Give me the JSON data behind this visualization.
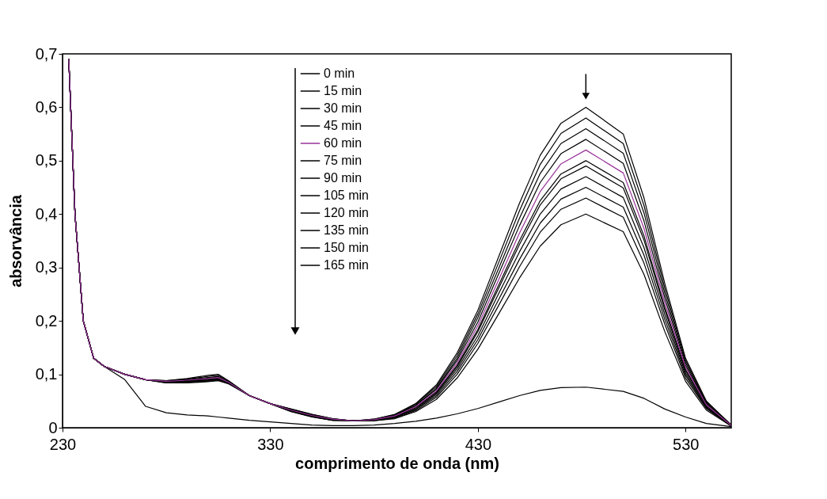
{
  "chart_data": {
    "type": "line",
    "xlabel": "comprimento de onda (nm)",
    "ylabel": "absorvância",
    "x": [
      233,
      236,
      240,
      245,
      250,
      260,
      270,
      280,
      290,
      300,
      305,
      310,
      320,
      330,
      340,
      350,
      360,
      370,
      380,
      390,
      400,
      410,
      420,
      430,
      440,
      450,
      460,
      470,
      482,
      500,
      510,
      520,
      530,
      540,
      552
    ],
    "xlim": [
      230,
      552
    ],
    "xticks": [
      230,
      330,
      430,
      530
    ],
    "ylim": [
      0,
      0.7
    ],
    "yticks": [
      0,
      {
        "value": 0.1,
        "label": "0,1"
      },
      {
        "value": 0.2,
        "label": "0,2"
      },
      {
        "value": 0.3,
        "label": "0,3"
      },
      {
        "value": 0.4,
        "label": "0,4"
      },
      {
        "value": 0.5,
        "label": "0,5"
      },
      {
        "value": 0.6,
        "label": "0,6"
      },
      {
        "value": 0.7,
        "label": "0,7"
      }
    ],
    "grid": false,
    "legend": "top",
    "marker": "none",
    "line_style": "solid",
    "series": [
      {
        "name": "0 min",
        "color": "#000000",
        "values": [
          0.69,
          0.4,
          0.2,
          0.13,
          0.115,
          0.1,
          0.09,
          0.088,
          0.092,
          0.098,
          0.1,
          0.088,
          0.06,
          0.045,
          0.035,
          0.025,
          0.017,
          0.013,
          0.016,
          0.025,
          0.045,
          0.08,
          0.14,
          0.22,
          0.32,
          0.42,
          0.51,
          0.57,
          0.6,
          0.55,
          0.43,
          0.27,
          0.13,
          0.05,
          0.005
        ]
      },
      {
        "name": "15 min",
        "color": "#000000",
        "values": [
          0.69,
          0.4,
          0.2,
          0.13,
          0.115,
          0.1,
          0.09,
          0.088,
          0.091,
          0.096,
          0.098,
          0.087,
          0.06,
          0.045,
          0.035,
          0.025,
          0.017,
          0.013,
          0.016,
          0.024,
          0.044,
          0.077,
          0.135,
          0.213,
          0.309,
          0.406,
          0.493,
          0.551,
          0.58,
          0.532,
          0.416,
          0.261,
          0.126,
          0.048,
          0.005
        ]
      },
      {
        "name": "30 min",
        "color": "#000000",
        "values": [
          0.69,
          0.4,
          0.2,
          0.13,
          0.115,
          0.1,
          0.09,
          0.087,
          0.09,
          0.094,
          0.096,
          0.086,
          0.06,
          0.045,
          0.034,
          0.024,
          0.016,
          0.013,
          0.015,
          0.024,
          0.042,
          0.074,
          0.13,
          0.206,
          0.298,
          0.392,
          0.476,
          0.532,
          0.56,
          0.514,
          0.402,
          0.252,
          0.122,
          0.046,
          0.004
        ]
      },
      {
        "name": "45 min",
        "color": "#000000",
        "values": [
          0.69,
          0.4,
          0.2,
          0.13,
          0.115,
          0.1,
          0.09,
          0.087,
          0.089,
          0.093,
          0.095,
          0.086,
          0.06,
          0.045,
          0.034,
          0.024,
          0.016,
          0.013,
          0.015,
          0.023,
          0.041,
          0.072,
          0.126,
          0.198,
          0.288,
          0.378,
          0.459,
          0.513,
          0.54,
          0.495,
          0.387,
          0.243,
          0.117,
          0.045,
          0.004
        ]
      },
      {
        "name": "60 min",
        "color": "#993399",
        "values": [
          0.69,
          0.4,
          0.2,
          0.13,
          0.115,
          0.1,
          0.09,
          0.087,
          0.089,
          0.092,
          0.094,
          0.085,
          0.06,
          0.045,
          0.033,
          0.023,
          0.016,
          0.013,
          0.015,
          0.022,
          0.039,
          0.069,
          0.121,
          0.191,
          0.277,
          0.364,
          0.442,
          0.494,
          0.52,
          0.477,
          0.373,
          0.234,
          0.113,
          0.043,
          0.004
        ]
      },
      {
        "name": "75 min",
        "color": "#000000",
        "values": [
          0.69,
          0.4,
          0.2,
          0.13,
          0.115,
          0.1,
          0.09,
          0.086,
          0.088,
          0.091,
          0.093,
          0.085,
          0.06,
          0.045,
          0.033,
          0.023,
          0.015,
          0.013,
          0.014,
          0.021,
          0.038,
          0.067,
          0.117,
          0.184,
          0.267,
          0.35,
          0.425,
          0.475,
          0.5,
          0.459,
          0.359,
          0.225,
          0.109,
          0.042,
          0.004
        ]
      },
      {
        "name": "90 min",
        "color": "#000000",
        "values": [
          0.69,
          0.4,
          0.2,
          0.13,
          0.115,
          0.1,
          0.09,
          0.086,
          0.088,
          0.09,
          0.092,
          0.084,
          0.06,
          0.045,
          0.032,
          0.022,
          0.015,
          0.013,
          0.014,
          0.021,
          0.037,
          0.065,
          0.114,
          0.18,
          0.261,
          0.343,
          0.417,
          0.466,
          0.49,
          0.449,
          0.351,
          0.221,
          0.106,
          0.041,
          0.004
        ]
      },
      {
        "name": "105 min",
        "color": "#000000",
        "values": [
          0.69,
          0.4,
          0.2,
          0.13,
          0.115,
          0.1,
          0.09,
          0.085,
          0.087,
          0.089,
          0.091,
          0.084,
          0.06,
          0.045,
          0.032,
          0.022,
          0.015,
          0.013,
          0.014,
          0.02,
          0.035,
          0.063,
          0.11,
          0.172,
          0.251,
          0.329,
          0.4,
          0.447,
          0.47,
          0.431,
          0.337,
          0.212,
          0.102,
          0.039,
          0.004
        ]
      },
      {
        "name": "120 min",
        "color": "#000000",
        "values": [
          0.69,
          0.4,
          0.2,
          0.13,
          0.115,
          0.1,
          0.09,
          0.085,
          0.086,
          0.088,
          0.09,
          0.083,
          0.06,
          0.045,
          0.031,
          0.021,
          0.014,
          0.013,
          0.014,
          0.019,
          0.034,
          0.06,
          0.105,
          0.165,
          0.24,
          0.315,
          0.383,
          0.428,
          0.45,
          0.413,
          0.323,
          0.203,
          0.098,
          0.037,
          0.004
        ]
      },
      {
        "name": "135 min",
        "color": "#000000",
        "values": [
          0.69,
          0.4,
          0.2,
          0.13,
          0.115,
          0.1,
          0.09,
          0.084,
          0.085,
          0.087,
          0.089,
          0.083,
          0.06,
          0.045,
          0.031,
          0.021,
          0.014,
          0.013,
          0.013,
          0.018,
          0.032,
          0.057,
          0.1,
          0.158,
          0.229,
          0.301,
          0.366,
          0.409,
          0.43,
          0.394,
          0.308,
          0.194,
          0.093,
          0.036,
          0.003
        ]
      },
      {
        "name": "150 min",
        "color": "#000000",
        "values": [
          0.69,
          0.4,
          0.2,
          0.13,
          0.115,
          0.1,
          0.09,
          0.084,
          0.084,
          0.086,
          0.088,
          0.082,
          0.06,
          0.045,
          0.03,
          0.02,
          0.014,
          0.013,
          0.013,
          0.017,
          0.03,
          0.053,
          0.093,
          0.147,
          0.213,
          0.28,
          0.34,
          0.38,
          0.4,
          0.367,
          0.287,
          0.18,
          0.087,
          0.033,
          0.003
        ]
      },
      {
        "name": "165 min",
        "color": "#000000",
        "values": [
          0.69,
          0.4,
          0.2,
          0.13,
          0.115,
          0.09,
          0.04,
          0.028,
          0.024,
          0.022,
          0.02,
          0.018,
          0.014,
          0.011,
          0.008,
          0.005,
          0.004,
          0.004,
          0.005,
          0.008,
          0.012,
          0.018,
          0.026,
          0.036,
          0.048,
          0.06,
          0.07,
          0.075,
          0.076,
          0.068,
          0.055,
          0.035,
          0.02,
          0.008,
          0.002
        ]
      }
    ]
  }
}
